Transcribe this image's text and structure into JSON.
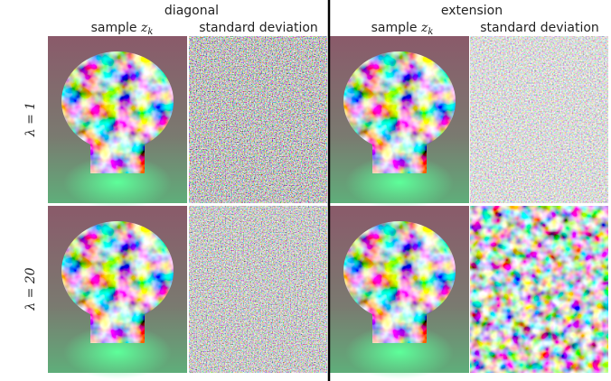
{
  "groups": [
    {
      "title": "diagonal",
      "columns": [
        {
          "label": "sample",
          "var": "z",
          "sub": "k"
        },
        {
          "label": "standard deviation"
        }
      ]
    },
    {
      "title": "extension",
      "columns": [
        {
          "label": "sample",
          "var": "z",
          "sub": "k"
        },
        {
          "label": "standard deviation"
        }
      ]
    }
  ],
  "rows": [
    {
      "label": "λ = 1"
    },
    {
      "label": "λ = 20"
    }
  ]
}
